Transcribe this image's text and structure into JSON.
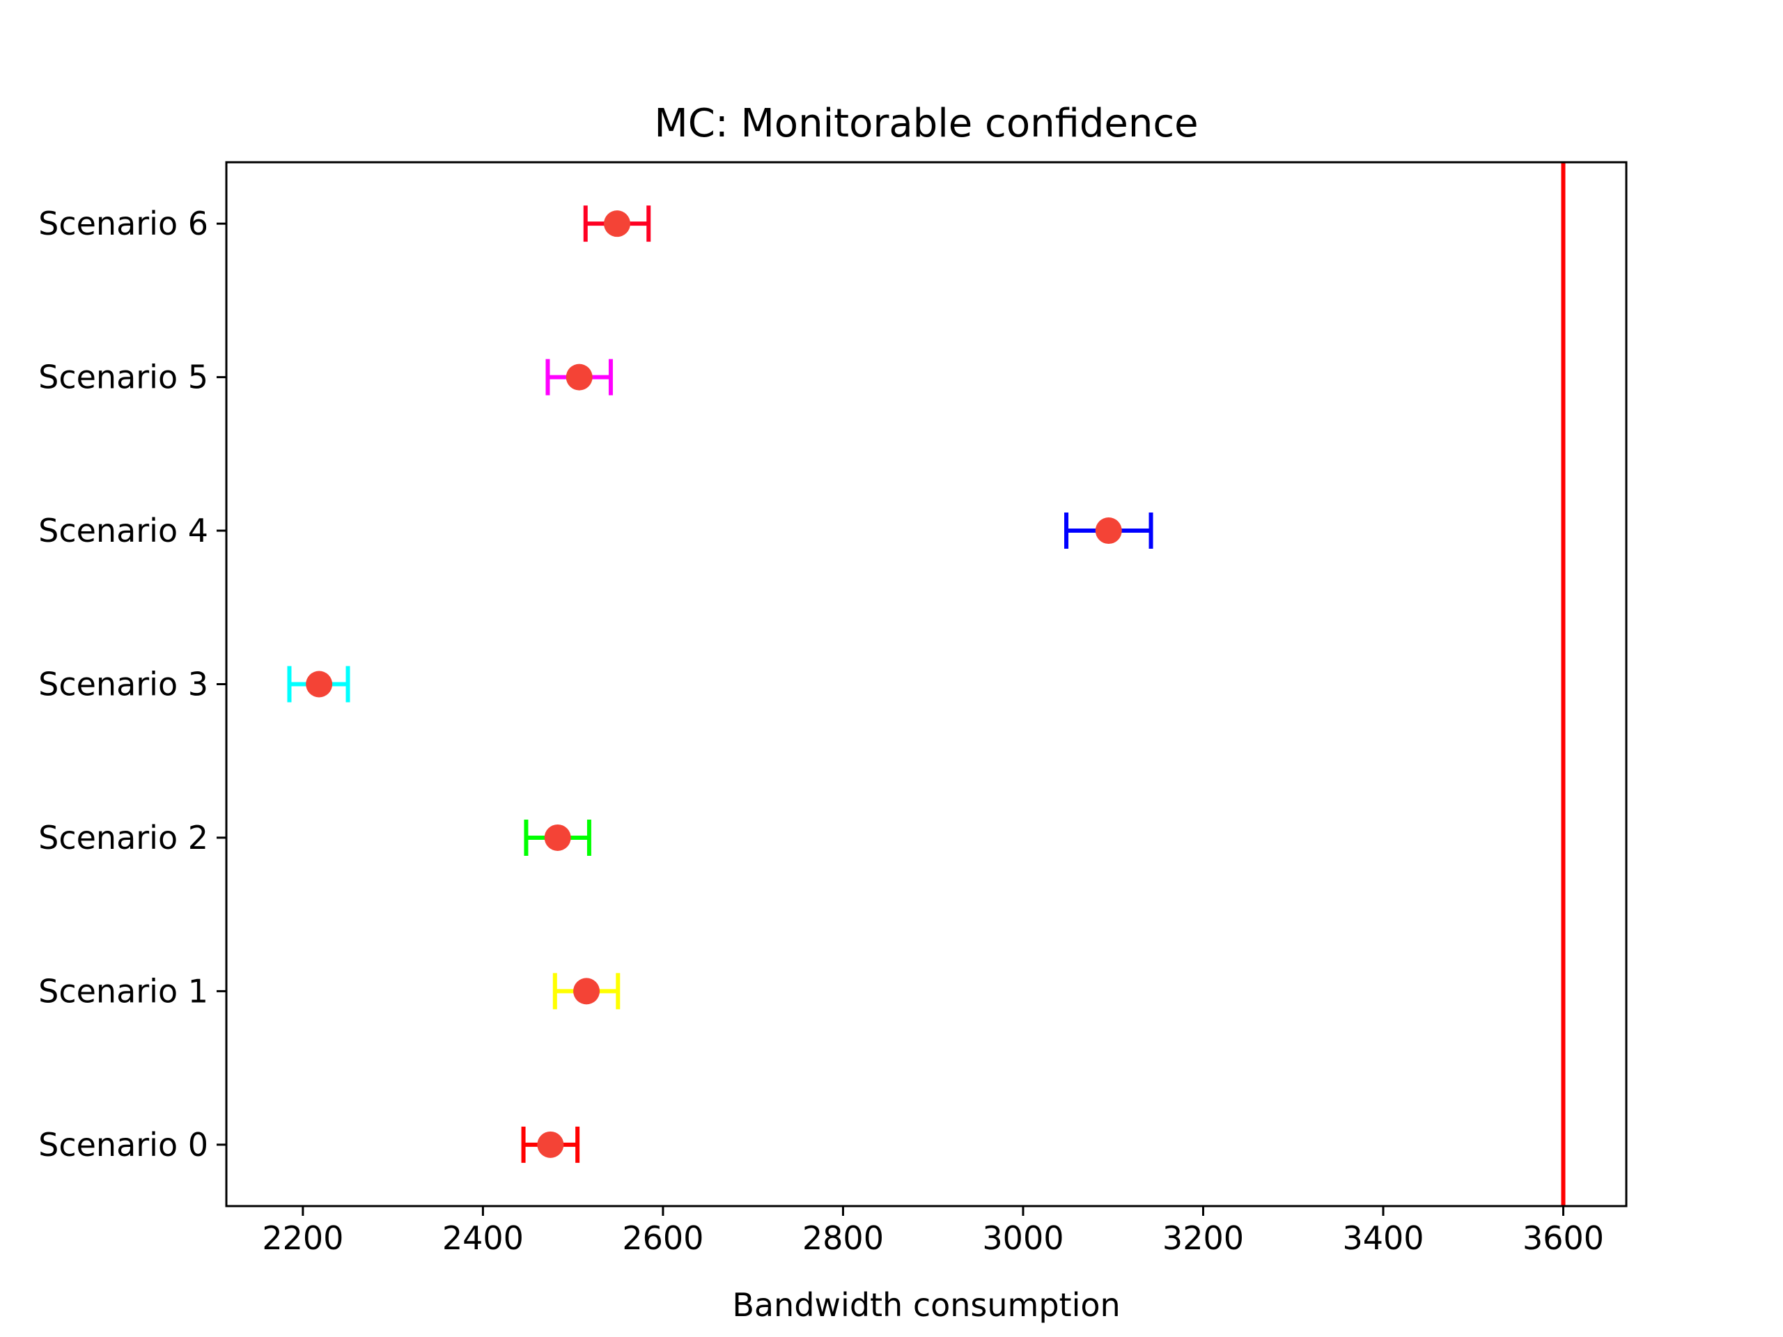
{
  "chart_data": {
    "type": "scatter",
    "title": "MC: Monitorable confidence",
    "xlabel": "Bandwidth consumption",
    "ylabel": "",
    "xlim": [
      2115,
      3670
    ],
    "ylim": [
      -0.4,
      6.4
    ],
    "xticks": [
      2200,
      2400,
      2600,
      2800,
      3000,
      3200,
      3400,
      3600
    ],
    "xtick_labels": [
      "2200",
      "2400",
      "2600",
      "2800",
      "3000",
      "3200",
      "3400",
      "3600"
    ],
    "grid": false,
    "point_color": "#f44336",
    "threshold": {
      "value": 3600,
      "color": "#ff0000"
    },
    "series": [
      {
        "category": "Scenario 0",
        "y": 0,
        "value": 2475,
        "err_low": 2445,
        "err_high": 2505,
        "color": "#ff0000"
      },
      {
        "category": "Scenario 1",
        "y": 1,
        "value": 2515,
        "err_low": 2480,
        "err_high": 2550,
        "color": "#ffff00"
      },
      {
        "category": "Scenario 2",
        "y": 2,
        "value": 2483,
        "err_low": 2448,
        "err_high": 2518,
        "color": "#00ff00"
      },
      {
        "category": "Scenario 3",
        "y": 3,
        "value": 2218,
        "err_low": 2185,
        "err_high": 2250,
        "color": "#00ffff"
      },
      {
        "category": "Scenario 4",
        "y": 4,
        "value": 3095,
        "err_low": 3048,
        "err_high": 3142,
        "color": "#0000ff"
      },
      {
        "category": "Scenario 5",
        "y": 5,
        "value": 2507,
        "err_low": 2472,
        "err_high": 2542,
        "color": "#ff00ff"
      },
      {
        "category": "Scenario 6",
        "y": 6,
        "value": 2549,
        "err_low": 2514,
        "err_high": 2584,
        "color": "#ff0022"
      }
    ]
  }
}
